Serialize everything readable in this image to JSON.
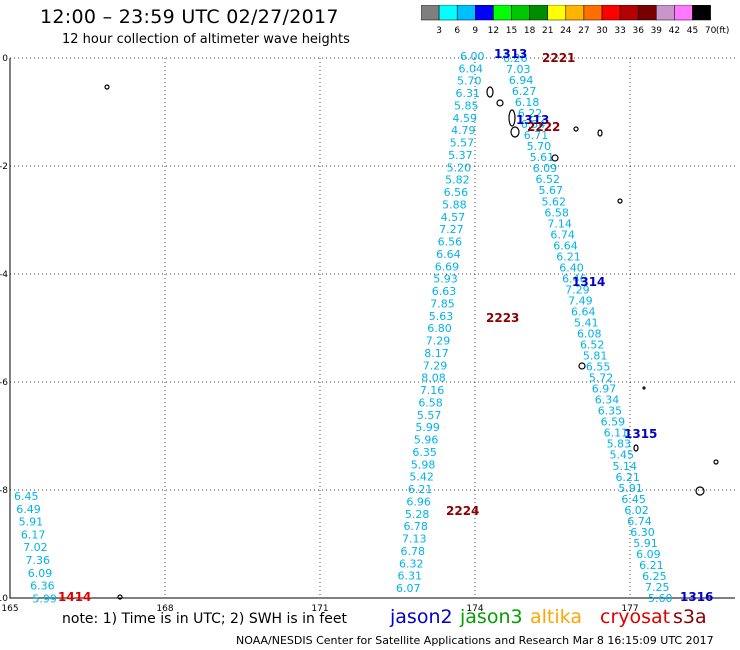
{
  "header": {
    "title": "12:00 – 23:59 UTC 02/27/2017",
    "subtitle": "12 hour collection of altimeter wave heights"
  },
  "color_scale": {
    "colors": [
      "#7f7f7f",
      "#00ffff",
      "#00bfff",
      "#0000ff",
      "#00ff00",
      "#00c800",
      "#008c00",
      "#ffff00",
      "#ffb400",
      "#ff6e00",
      "#ff0000",
      "#b40000",
      "#780000",
      "#c896c8",
      "#ff78ff",
      "#000000"
    ],
    "ticks": [
      "3",
      "6",
      "9",
      "12",
      "15",
      "18",
      "21",
      "24",
      "27",
      "30",
      "33",
      "36",
      "39",
      "42",
      "45",
      "70",
      "(ft)"
    ]
  },
  "axes": {
    "y_ticks": [
      "0",
      "-2",
      "-4",
      "-6",
      "-8",
      "-10"
    ],
    "x_ticks": [
      "165",
      "168",
      "171",
      "174",
      "177"
    ]
  },
  "tracks": [
    {
      "id": "jason2-track-1313",
      "label": "1313",
      "label_color": "#0000c8",
      "label_pos": [
        494,
        58
      ],
      "values": [
        "6.00",
        "6.04",
        "5.70",
        "6.31",
        "5.85",
        "4.59",
        "4.79",
        "5.57",
        "5.37",
        "5.20",
        "5.82",
        "6.56",
        "5.88",
        "4.57",
        "7.27",
        "6.56",
        "6.64",
        "6.69",
        "5.93",
        "6.63",
        "7.85",
        "5.63",
        "6.80",
        "7.29",
        "8.17",
        "7.29",
        "8.08",
        "7.16",
        "6.58",
        "5.57",
        "5.99",
        "5.96",
        "6.35",
        "5.98",
        "5.42",
        "6.21",
        "6.96",
        "5.28",
        "6.78",
        "7.13",
        "6.78",
        "6.32",
        "6.31",
        "6.07"
      ]
    },
    {
      "id": "jason2-track-1314",
      "label": "1314",
      "label_color": "#0000c8",
      "label_pos": [
        572,
        286
      ],
      "values": [
        "6.26",
        "7.03",
        "6.94",
        "6.27",
        "6.18",
        "6.22",
        "6.54",
        "6.71",
        "5.70",
        "5.61",
        "6.09",
        "6.52",
        "5.67",
        "5.62",
        "6.58",
        "7.14",
        "6.74",
        "6.64",
        "6.21",
        "6.40",
        "6.46",
        "7.29",
        "7.49",
        "6.64",
        "5.41",
        "6.08",
        "6.52",
        "5.81",
        "6.55",
        "5.72",
        "6.97",
        "6.34",
        "6.35",
        "6.59",
        "6.11",
        "5.83",
        "5.45",
        "5.14",
        "6.21",
        "5.91",
        "6.45",
        "6.02",
        "6.74",
        "6.30",
        "5.91",
        "6.09",
        "6.21",
        "6.25",
        "7.25",
        "5.60"
      ]
    },
    {
      "id": "jason2-track-1315",
      "label": "1315",
      "label_color": "#0000c8",
      "label_pos": [
        624,
        438
      ],
      "values": []
    },
    {
      "id": "jason2-track-1316",
      "label": "1316",
      "label_color": "#0000c8",
      "label_pos": [
        680,
        601
      ],
      "values": []
    },
    {
      "id": "jason2-track-1313b",
      "label": "1313",
      "label_color": "#0000c8",
      "label_pos": [
        516,
        124
      ],
      "values": []
    },
    {
      "id": "s3a-track-2221",
      "label": "2221",
      "label_color": "#8b0000",
      "label_pos": [
        542,
        62
      ],
      "values": []
    },
    {
      "id": "s3a-track-2222",
      "label": "2222",
      "label_color": "#8b0000",
      "label_pos": [
        527,
        131
      ],
      "values": []
    },
    {
      "id": "s3a-track-2223",
      "label": "2223",
      "label_color": "#8b0000",
      "label_pos": [
        486,
        322
      ],
      "values": []
    },
    {
      "id": "s3a-track-2224",
      "label": "2224",
      "label_color": "#8b0000",
      "label_pos": [
        446,
        515
      ],
      "values": []
    },
    {
      "id": "cryosat-track-1414",
      "label": "1414",
      "label_color": "#dd0000",
      "label_pos": [
        58,
        601
      ],
      "values": [
        "6.45",
        "6.49",
        "5.91",
        "6.17",
        "7.02",
        "7.36",
        "6.09",
        "6.36",
        "5.99"
      ]
    }
  ],
  "note": "note: 1) Time is in UTC; 2) SWH is in feet",
  "legend": [
    {
      "name": "jason2",
      "color": "#0000c8"
    },
    {
      "name": "jason3",
      "color": "#00a000"
    },
    {
      "name": "altika",
      "color": "#ffa500"
    },
    {
      "name": "cryosat",
      "color": "#e00000"
    },
    {
      "name": "s3a",
      "color": "#8b0000"
    }
  ],
  "footer": "NOAA/NESDIS Center for Satellite Applications and Research   Mar  8 16:15:09 UTC 2017"
}
